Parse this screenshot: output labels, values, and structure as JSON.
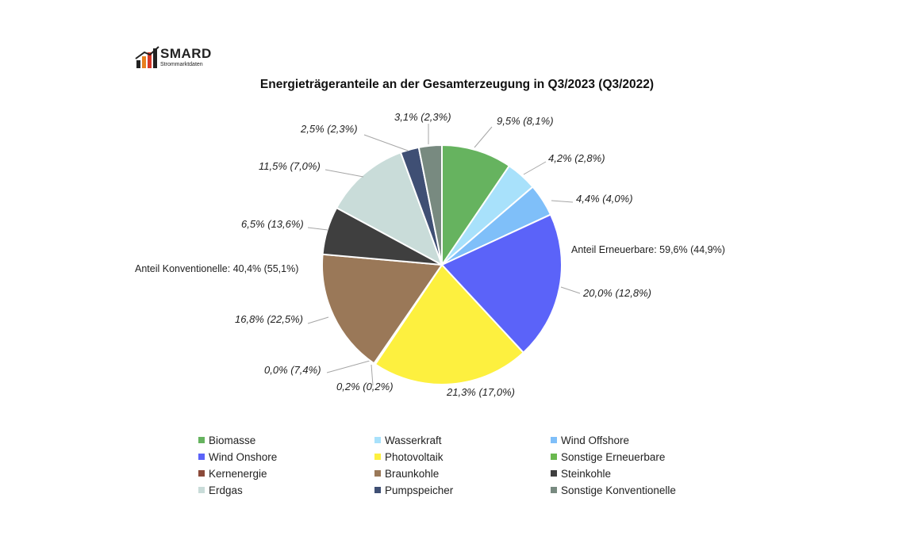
{
  "logo": {
    "word": "SMARD",
    "sub": "Strommarktdaten"
  },
  "title": "Energieträgeranteile an der Gesamterzeugung in Q3/2023 (Q3/2022)",
  "chart_data": {
    "type": "pie",
    "title": "Energieträgeranteile an der Gesamterzeugung in Q3/2023 (Q3/2022)",
    "legend_position": "bottom",
    "slices": [
      {
        "name": "Biomasse",
        "value": 9.5,
        "prev": 8.1,
        "color": "#66b35f",
        "label": "9,5% (8,1%)"
      },
      {
        "name": "Wasserkraft",
        "value": 4.2,
        "prev": 2.8,
        "color": "#a8e1fb",
        "label": "4,2% (2,8%)"
      },
      {
        "name": "Wind Offshore",
        "value": 4.4,
        "prev": 4.0,
        "color": "#7fbff9",
        "label": "4,4% (4,0%)"
      },
      {
        "name": "Wind Onshore",
        "value": 20.0,
        "prev": 12.8,
        "color": "#5b63f9",
        "label": "20,0% (12,8%)"
      },
      {
        "name": "Photovoltaik",
        "value": 21.3,
        "prev": 17.0,
        "color": "#fdf03f",
        "label": "21,3% (17,0%)"
      },
      {
        "name": "Sonstige Erneuerbare",
        "value": 0.2,
        "prev": 0.2,
        "color": "#6ab84f",
        "label": "0,2% (0,2%)"
      },
      {
        "name": "Kernenergie",
        "value": 0.0,
        "prev": 7.4,
        "color": "#8b4a3a",
        "label": "0,0% (7,4%)"
      },
      {
        "name": "Braunkohle",
        "value": 16.8,
        "prev": 22.5,
        "color": "#9a7858",
        "label": "16,8% (22,5%)"
      },
      {
        "name": "Steinkohle",
        "value": 6.5,
        "prev": 13.6,
        "color": "#3f3f3f",
        "label": "6,5% (13,6%)"
      },
      {
        "name": "Erdgas",
        "value": 11.5,
        "prev": 7.0,
        "color": "#c9dcd9",
        "label": "11,5% (7,0%)"
      },
      {
        "name": "Pumpspeicher",
        "value": 2.5,
        "prev": 2.3,
        "color": "#3f4f74",
        "label": "2,5% (2,3%)"
      },
      {
        "name": "Sonstige Konventionelle",
        "value": 3.1,
        "prev": 2.3,
        "color": "#788a80",
        "label": "3,1% (2,3%)"
      }
    ],
    "summary_labels": {
      "renewables": "Anteil Erneuerbare: 59,6% (44,9%)",
      "conventional": "Anteil Konventionelle: 40,4% (55,1%)"
    },
    "legend": [
      "Biomasse",
      "Wasserkraft",
      "Wind Offshore",
      "Wind Onshore",
      "Photovoltaik",
      "Sonstige Erneuerbare",
      "Kernenergie",
      "Braunkohle",
      "Steinkohle",
      "Erdgas",
      "Pumpspeicher",
      "Sonstige Konventionelle"
    ]
  }
}
